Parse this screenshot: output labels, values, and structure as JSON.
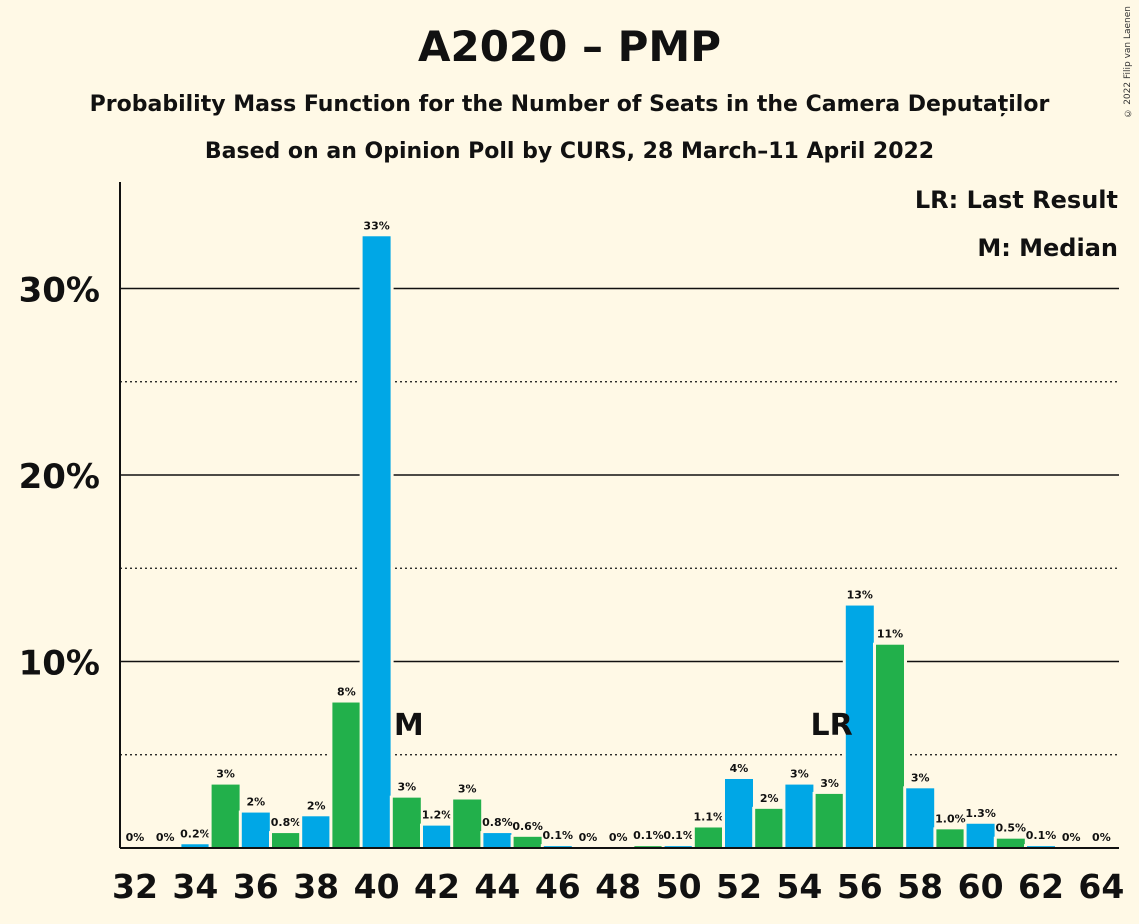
{
  "chart_data": {
    "type": "bar",
    "title": "A2020 – PMP",
    "subtitle": "Probability Mass Function for the Number of Seats in the Camera Deputaților",
    "subtitle2": "Based on an Opinion Poll by CURS, 28 March–11 April 2022",
    "copyright": "© 2022 Filip van Laenen",
    "legend": {
      "lr": "LR: Last Result",
      "m": "M: Median",
      "placement": "top-right"
    },
    "x": [
      32,
      33,
      34,
      35,
      36,
      37,
      38,
      39,
      40,
      41,
      42,
      43,
      44,
      45,
      46,
      47,
      48,
      49,
      50,
      51,
      52,
      53,
      54,
      55,
      56,
      57,
      58,
      59,
      60,
      61,
      62,
      63,
      64
    ],
    "values": [
      0,
      0,
      0.2,
      3.4,
      1.9,
      0.8,
      1.7,
      7.8,
      32.8,
      2.7,
      1.2,
      2.6,
      0.8,
      0.6,
      0.1,
      0,
      0,
      0.1,
      0.1,
      1.1,
      3.7,
      2.1,
      3.4,
      2.9,
      13.0,
      10.9,
      3.2,
      1.0,
      1.3,
      0.5,
      0.1,
      0,
      0
    ],
    "labels": [
      "0%",
      "0%",
      "0.2%",
      "3%",
      "2%",
      "0.8%",
      "2%",
      "8%",
      "33%",
      "3%",
      "1.2%",
      "3%",
      "0.8%",
      "0.6%",
      "0.1%",
      "0%",
      "0%",
      "0.1%",
      "0.1%",
      "1.1%",
      "4%",
      "2%",
      "3%",
      "3%",
      "13%",
      "11%",
      "3%",
      "1.0%",
      "1.3%",
      "0.5%",
      "0.1%",
      "0%",
      "0%"
    ],
    "colors": [
      "#00a7e6",
      "#22b04b"
    ],
    "color_pattern": "x even: blue, x odd: green",
    "x_ticks": [
      "32",
      "34",
      "36",
      "38",
      "40",
      "42",
      "44",
      "46",
      "48",
      "50",
      "52",
      "54",
      "56",
      "58",
      "60",
      "62",
      "64"
    ],
    "y_ticks": [
      "10%",
      "20%",
      "30%"
    ],
    "ylim": [
      0,
      36
    ],
    "grid": {
      "solid": [
        10,
        20,
        30
      ],
      "dotted": [
        5,
        15,
        25
      ]
    },
    "markers": [
      {
        "x": 41,
        "text": "M"
      },
      {
        "x": 55,
        "text": "LR"
      }
    ]
  }
}
